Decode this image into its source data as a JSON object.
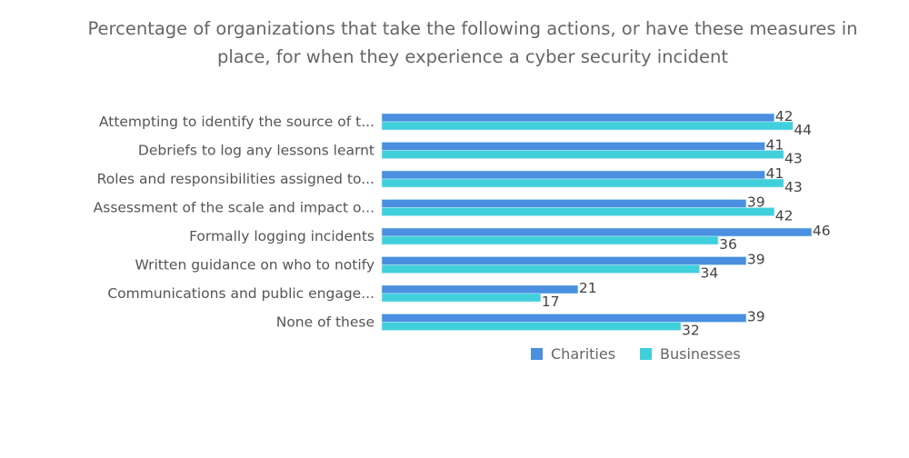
{
  "chart_data": {
    "type": "bar",
    "orientation": "horizontal",
    "title": [
      "Percentage of organizations that take the following actions, or have these measures in",
      "place, for when they experience a cyber security incident"
    ],
    "categories": [
      "Attempting to identify the source of t...",
      "Debriefs to log any lessons learnt",
      "Roles and responsibilities assigned to...",
      "Assessment of the scale and impact o...",
      "Formally logging incidents",
      "Written guidance on who to notify",
      "Communications and public engage...",
      "None of these"
    ],
    "series": [
      {
        "name": "Charities",
        "color": "#4a8fe0",
        "values": [
          42,
          41,
          41,
          39,
          46,
          39,
          21,
          39
        ]
      },
      {
        "name": "Businesses",
        "color": "#40d0dc",
        "values": [
          44,
          43,
          43,
          42,
          36,
          34,
          17,
          32
        ]
      }
    ],
    "xlim": [
      0,
      46
    ],
    "grid": false,
    "legend": "bottom"
  }
}
